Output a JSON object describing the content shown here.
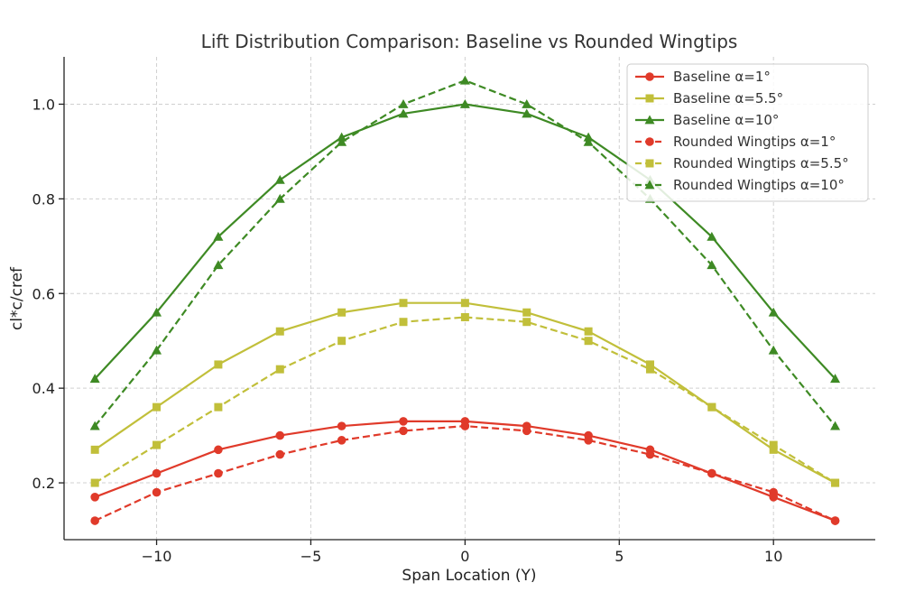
{
  "chart_data": {
    "type": "line",
    "title": "Lift Distribution Comparison: Baseline vs Rounded Wingtips",
    "xlabel": "Span Location (Y)",
    "ylabel": "cl*c/cref",
    "xlim": [
      -13.0,
      13.3
    ],
    "ylim": [
      0.08,
      1.1
    ],
    "xticks": [
      -10,
      -5,
      0,
      5,
      10
    ],
    "xtick_labels": [
      "−10",
      "−5",
      "0",
      "5",
      "10"
    ],
    "yticks": [
      0.2,
      0.4,
      0.6,
      0.8,
      1.0
    ],
    "ytick_labels": [
      "0.2",
      "0.4",
      "0.6",
      "0.8",
      "1.0"
    ],
    "grid": true,
    "legend_position": "top-right",
    "x": [
      -12,
      -10,
      -8,
      -6,
      -4,
      -2,
      0,
      2,
      4,
      6,
      8,
      10,
      12
    ],
    "series": [
      {
        "name": "Baseline α=1°",
        "color": "#e03a2a",
        "style": "solid",
        "marker": "circle",
        "values": [
          0.17,
          0.22,
          0.27,
          0.3,
          0.32,
          0.33,
          0.33,
          0.32,
          0.3,
          0.27,
          0.22,
          0.17,
          0.12
        ]
      },
      {
        "name": "Baseline α=5.5°",
        "color": "#c1bf3a",
        "style": "solid",
        "marker": "square",
        "values": [
          0.27,
          0.36,
          0.45,
          0.52,
          0.56,
          0.58,
          0.58,
          0.56,
          0.52,
          0.45,
          0.36,
          0.27,
          0.2
        ]
      },
      {
        "name": "Baseline α=10°",
        "color": "#3e8a24",
        "style": "solid",
        "marker": "triangle",
        "values": [
          0.42,
          0.56,
          0.72,
          0.84,
          0.93,
          0.98,
          1.0,
          0.98,
          0.93,
          0.84,
          0.72,
          0.56,
          0.42
        ]
      },
      {
        "name": "Rounded Wingtips α=1°",
        "color": "#e03a2a",
        "style": "dashed",
        "marker": "circle",
        "values": [
          0.12,
          0.18,
          0.22,
          0.26,
          0.29,
          0.31,
          0.32,
          0.31,
          0.29,
          0.26,
          0.22,
          0.18,
          0.12
        ]
      },
      {
        "name": "Rounded Wingtips α=5.5°",
        "color": "#c1bf3a",
        "style": "dashed",
        "marker": "square",
        "values": [
          0.2,
          0.28,
          0.36,
          0.44,
          0.5,
          0.54,
          0.55,
          0.54,
          0.5,
          0.44,
          0.36,
          0.28,
          0.2
        ]
      },
      {
        "name": "Rounded Wingtips α=10°",
        "color": "#3e8a24",
        "style": "dashed",
        "marker": "triangle",
        "values": [
          0.32,
          0.48,
          0.66,
          0.8,
          0.92,
          1.0,
          1.05,
          1.0,
          0.92,
          0.8,
          0.66,
          0.48,
          0.32
        ]
      }
    ]
  }
}
